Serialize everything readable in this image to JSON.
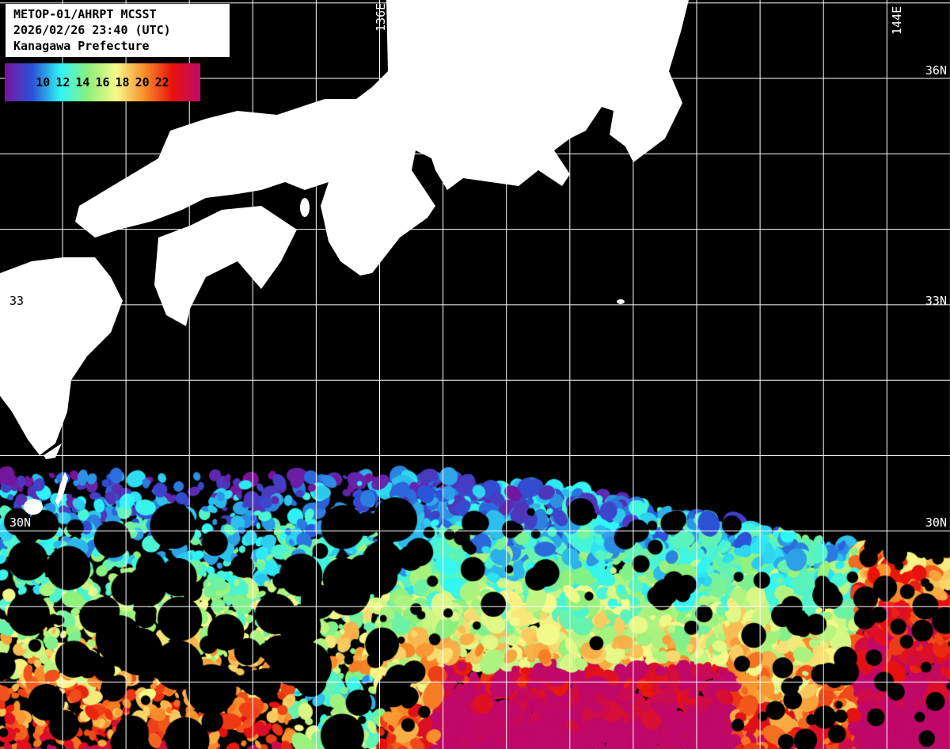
{
  "title": {
    "line1": "METOP-01/AHRPT MCSST",
    "line2": "2026/02/26 23:40 (UTC)",
    "line3": "Kanagawa Prefecture"
  },
  "colorbar": {
    "labels": [
      "10",
      "12",
      "14",
      "16",
      "18",
      "20",
      "22"
    ],
    "colors": [
      "#7a129a",
      "#2a54d8",
      "#2ff6f6",
      "#8ef07a",
      "#f8fa8a",
      "#f88e2a",
      "#e8120a",
      "#c0086a"
    ],
    "unit_range": [
      9,
      23
    ]
  },
  "grid": {
    "lon_labels": {
      "a": "136E",
      "b": "144E"
    },
    "lat_labels": {
      "n36": "36N",
      "n33": "33N",
      "n33_left": "33",
      "n30_left": "30N",
      "n30_right": "30N"
    },
    "color": "#ffffff"
  },
  "land_color": "#ffffff",
  "background_color": "#000000"
}
